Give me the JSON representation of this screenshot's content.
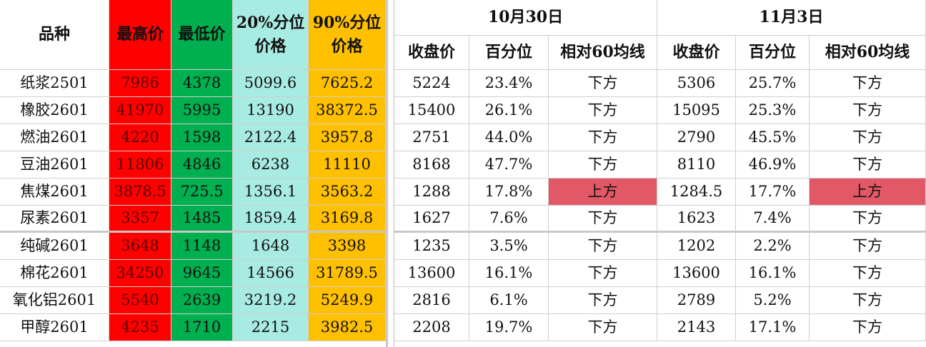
{
  "header": {
    "variety": "品种",
    "high": "最高价",
    "low": "最低价",
    "p20": [
      "20%分位",
      "价格"
    ],
    "p90": [
      "90%分位",
      "价格"
    ],
    "dates": [
      "10月30日",
      "11月3日"
    ],
    "sub": [
      "收盘价",
      "百分位",
      "相对60均线"
    ]
  },
  "rows": [
    [
      "纸浆2501",
      "7986",
      "4378",
      "5099.6",
      "7625.2",
      "5224",
      "23.4%",
      "下方",
      "5306",
      "25.7%",
      "下方"
    ],
    [
      "橡胶2601",
      "41970",
      "5995",
      "13190",
      "38372.5",
      "15400",
      "26.1%",
      "下方",
      "15095",
      "25.3%",
      "下方"
    ],
    [
      "燃油2601",
      "4220",
      "1598",
      "2122.4",
      "3957.8",
      "2751",
      "44.0%",
      "下方",
      "2790",
      "45.5%",
      "下方"
    ],
    [
      "豆油2601",
      "11806",
      "4846",
      "6238",
      "11110",
      "8168",
      "47.7%",
      "下方",
      "8110",
      "46.9%",
      "下方"
    ],
    [
      "焦煤2601",
      "3878.5",
      "725.5",
      "1356.1",
      "3563.2",
      "1288",
      "17.8%",
      "上方",
      "1284.5",
      "17.7%",
      "上方"
    ],
    [
      "尿素2601",
      "3357",
      "1485",
      "1859.4",
      "3169.8",
      "1627",
      "7.6%",
      "下方",
      "1623",
      "7.4%",
      "下方"
    ],
    [
      "纯碱2601",
      "3648",
      "1148",
      "1648",
      "3398",
      "1235",
      "3.5%",
      "下方",
      "1202",
      "2.2%",
      "下方"
    ],
    [
      "棉花2601",
      "34250",
      "9645",
      "14566",
      "31789.5",
      "13600",
      "16.1%",
      "下方",
      "13600",
      "16.1%",
      "下方"
    ],
    [
      "氧化铝2601",
      "5540",
      "2639",
      "3219.2",
      "5249.9",
      "2816",
      "6.1%",
      "下方",
      "2789",
      "5.2%",
      "下方"
    ],
    [
      "甲醇2601",
      "4235",
      "1710",
      "2215",
      "3982.5",
      "2208",
      "19.7%",
      "下方",
      "2143",
      "17.1%",
      "下方"
    ]
  ],
  "column_colors": [
    "#ffffff",
    "#ff0000",
    "#00b050",
    "#a8ebe2",
    "#ffc000"
  ],
  "highlight": {
    "color": "#e25866",
    "cells": [
      [
        4,
        7
      ],
      [
        4,
        10
      ]
    ]
  }
}
